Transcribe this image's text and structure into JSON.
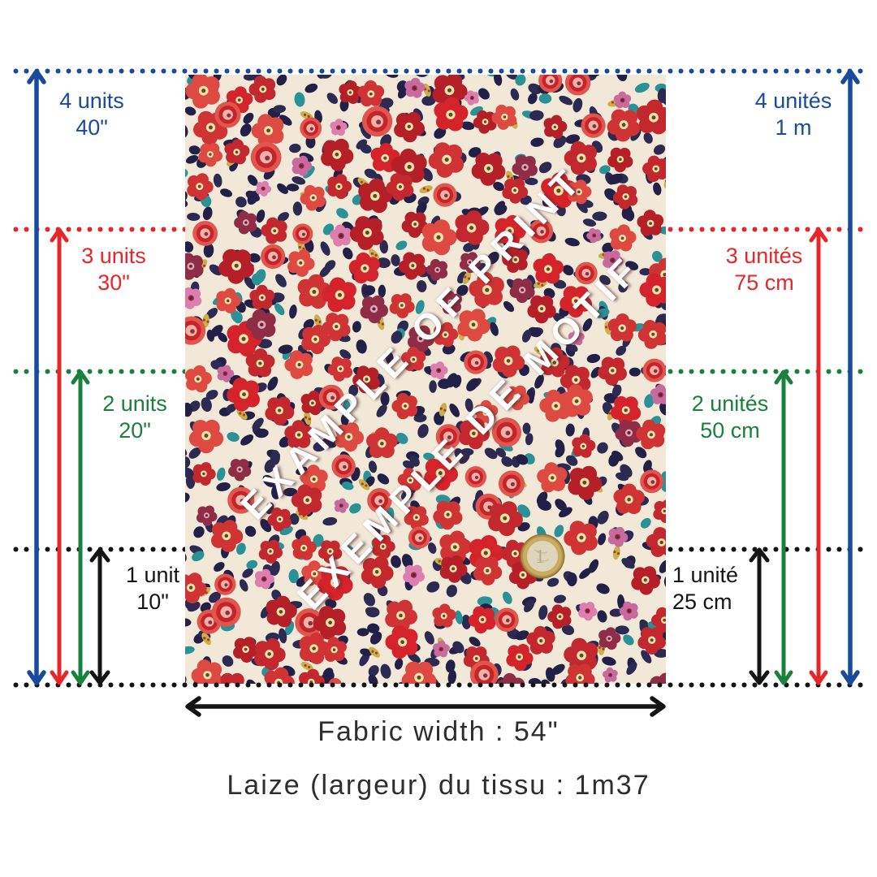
{
  "colors": {
    "blue": "#1a4a9b",
    "red": "#e8262a",
    "green": "#19803d",
    "black": "#141414",
    "fabric_cream": "#f2e8d8",
    "coin_gold": "#b2934b"
  },
  "left_measurements": [
    {
      "units": "4 units",
      "value": "40\""
    },
    {
      "units": "3 units",
      "value": "30\""
    },
    {
      "units": "2 units",
      "value": "20\""
    },
    {
      "units": "1 unit",
      "value": "10\""
    }
  ],
  "right_measurements": [
    {
      "units": "4 unités",
      "value": "1 m"
    },
    {
      "units": "3 unités",
      "value": "75 cm"
    },
    {
      "units": "2 unités",
      "value": "50 cm"
    },
    {
      "units": "1 unité",
      "value": "25 cm"
    }
  ],
  "watermark": {
    "line1": "EXAMPLE OF PRINT",
    "line2": "EXEMPLE DE MOTIF"
  },
  "footer": {
    "fabric_width_en": "Fabric width : 54\"",
    "fabric_width_fr": "Laize (largeur) du tissu : 1m37"
  },
  "coin": {
    "denomination": "1"
  }
}
